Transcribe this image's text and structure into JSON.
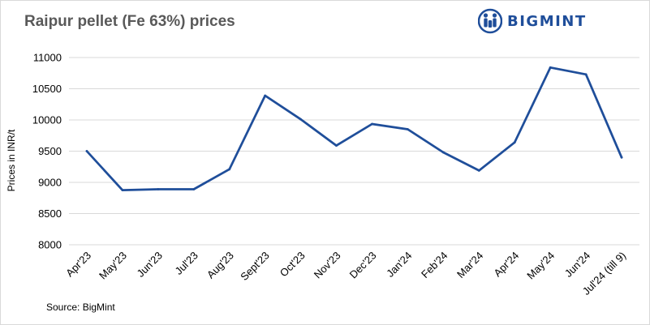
{
  "header": {
    "title": "Raipur pellet (Fe 63%) prices",
    "logo_text": "BIGMINT",
    "logo_icon": "bigmint-people-icon",
    "brand_color": "#1f4e9a"
  },
  "footer": {
    "source": "Source: BigMint"
  },
  "chart_data": {
    "type": "line",
    "title": "Raipur pellet (Fe 63%) prices",
    "ylabel": "Prices in INR/t",
    "xlabel": "",
    "ylim": [
      8000,
      11000
    ],
    "yticks": [
      8000,
      8500,
      9000,
      9500,
      10000,
      10500,
      11000
    ],
    "grid": true,
    "categories": [
      "Apr'23",
      "May'23",
      "Jun'23",
      "Jul'23",
      "Aug'23",
      "Sept'23",
      "Oct'23",
      "Nov'23",
      "Dec'23",
      "Jan'24",
      "Feb'24",
      "Mar'24",
      "Apr'24",
      "May'24",
      "Jun'24",
      "Jul'24 (till 9)"
    ],
    "series": [
      {
        "color": "#1f4e9a",
        "values": [
          9500,
          8875,
          8890,
          8890,
          9210,
          10390,
          10010,
          9590,
          9935,
          9850,
          9480,
          9190,
          9640,
          10840,
          10730,
          9400
        ]
      }
    ]
  }
}
